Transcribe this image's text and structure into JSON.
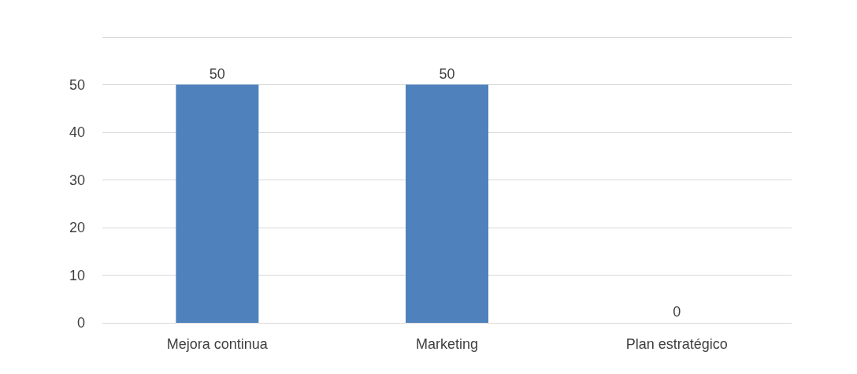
{
  "chart_data": {
    "type": "bar",
    "categories": [
      "Mejora continua",
      "Marketing",
      "Plan estratégico"
    ],
    "values": [
      50,
      50,
      0
    ],
    "color": "#4f81bd",
    "ylim": [
      0,
      60
    ],
    "yticks": [
      0,
      10,
      20,
      30,
      40,
      50,
      {
        "value": 60,
        "label": null
      }
    ],
    "grid": "y",
    "data_labels": true
  }
}
